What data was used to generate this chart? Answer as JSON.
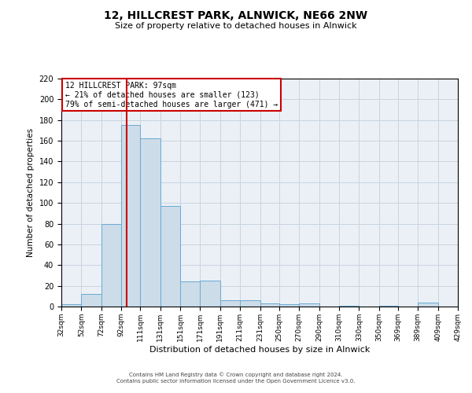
{
  "title": "12, HILLCREST PARK, ALNWICK, NE66 2NW",
  "subtitle": "Size of property relative to detached houses in Alnwick",
  "xlabel": "Distribution of detached houses by size in Alnwick",
  "ylabel": "Number of detached properties",
  "bar_color": "#ccdce8",
  "bar_edge_color": "#6aaad4",
  "grid_color": "#c8d4e0",
  "background_color": "#eaf0f6",
  "annotation_box_color": "#cc0000",
  "annotation_line_color": "#cc0000",
  "bins": [
    32,
    52,
    72,
    92,
    111,
    131,
    151,
    171,
    191,
    211,
    231,
    250,
    270,
    290,
    310,
    330,
    350,
    369,
    389,
    409,
    429
  ],
  "counts": [
    2,
    12,
    80,
    175,
    162,
    97,
    24,
    25,
    6,
    6,
    3,
    2,
    3,
    0,
    1,
    0,
    1,
    0,
    4,
    0
  ],
  "tick_labels": [
    "32sqm",
    "52sqm",
    "72sqm",
    "92sqm",
    "111sqm",
    "131sqm",
    "151sqm",
    "171sqm",
    "191sqm",
    "211sqm",
    "231sqm",
    "250sqm",
    "270sqm",
    "290sqm",
    "310sqm",
    "330sqm",
    "350sqm",
    "369sqm",
    "389sqm",
    "409sqm",
    "429sqm"
  ],
  "property_size": 97,
  "property_name": "12 HILLCREST PARK: 97sqm",
  "pct_smaller": 21,
  "num_smaller": 123,
  "pct_larger_semi": 79,
  "num_larger_semi": 471,
  "ylim": [
    0,
    220
  ],
  "yticks": [
    0,
    20,
    40,
    60,
    80,
    100,
    120,
    140,
    160,
    180,
    200,
    220
  ],
  "footer_line1": "Contains HM Land Registry data © Crown copyright and database right 2024.",
  "footer_line2": "Contains public sector information licensed under the Open Government Licence v3.0."
}
